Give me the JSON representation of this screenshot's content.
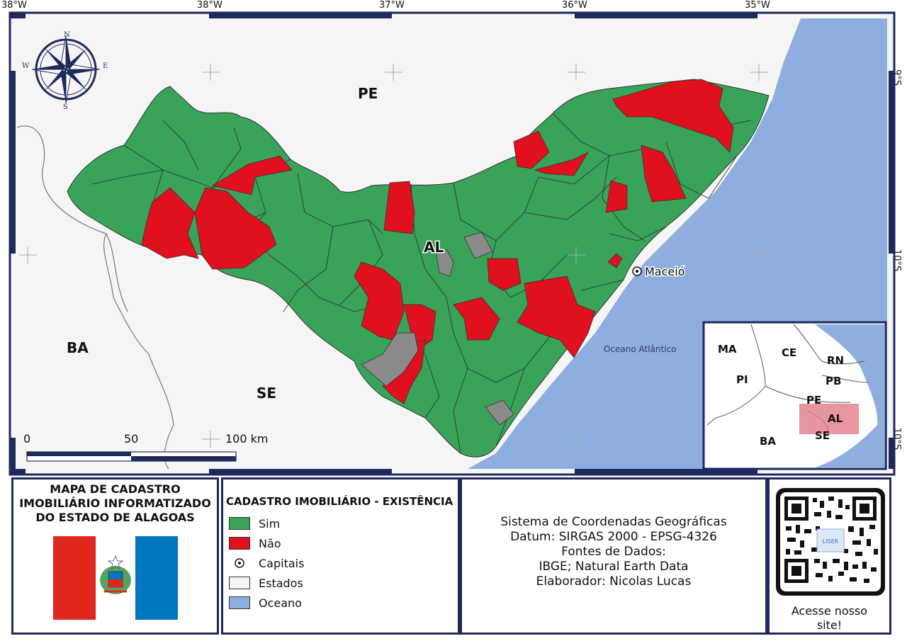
{
  "coords": {
    "top_left": "38°W",
    "top_38": "38°W",
    "top_37": "37°W",
    "top_36": "36°W",
    "top_35": "35°W",
    "right_9": "9°S",
    "right_10a": "10°S",
    "right_10b": "10°S"
  },
  "map": {
    "state_labels": {
      "pe": "PE",
      "ba": "BA",
      "se": "SE",
      "al": "AL"
    },
    "capital_label": "Maceió",
    "ocean_label": "Oceano Atlântico",
    "compass": {
      "n": "N",
      "s": "S",
      "e": "E",
      "w": "W"
    },
    "scalebar": {
      "zero": "0",
      "mid": "50",
      "end": "100 km"
    }
  },
  "inset": {
    "labels": {
      "ma": "MA",
      "ce": "CE",
      "rn": "RN",
      "pi": "PI",
      "pb": "PB",
      "pe": "PE",
      "al": "AL",
      "ba": "BA",
      "se": "SE"
    }
  },
  "title_panel": {
    "line1": "MAPA DE CADASTRO",
    "line2": "IMOBILIÁRIO INFORMATIZADO",
    "line3": "DO ESTADO DE ALAGOAS"
  },
  "legend": {
    "title": "CADASTRO IMOBILIÁRIO - EXISTÊNCIA",
    "items": [
      {
        "label": "Sim",
        "color": "#3aa35a"
      },
      {
        "label": "Não",
        "color": "#e0101e"
      },
      {
        "label": "Capitais"
      },
      {
        "label": "Estados",
        "color": "#f5f5f5"
      },
      {
        "label": "Oceano",
        "color": "#8eaee0"
      }
    ]
  },
  "info": {
    "line1": "Sistema de Coordenadas Geográficas",
    "line2": "Datum: SIRGAS 2000 - EPSG-4326",
    "line3": "Fontes de Dados:",
    "line4": "IBGE; Natural Earth Data",
    "line5": "Elaborador: Nicolas Lucas"
  },
  "qr": {
    "caption1": "Acesse nosso",
    "caption2": "site!"
  },
  "colors": {
    "sim": "#3aa35a",
    "nao": "#e0101e",
    "gray": "#8a8a8a",
    "ocean": "#8eaee0",
    "frame": "#1f2a5c"
  }
}
